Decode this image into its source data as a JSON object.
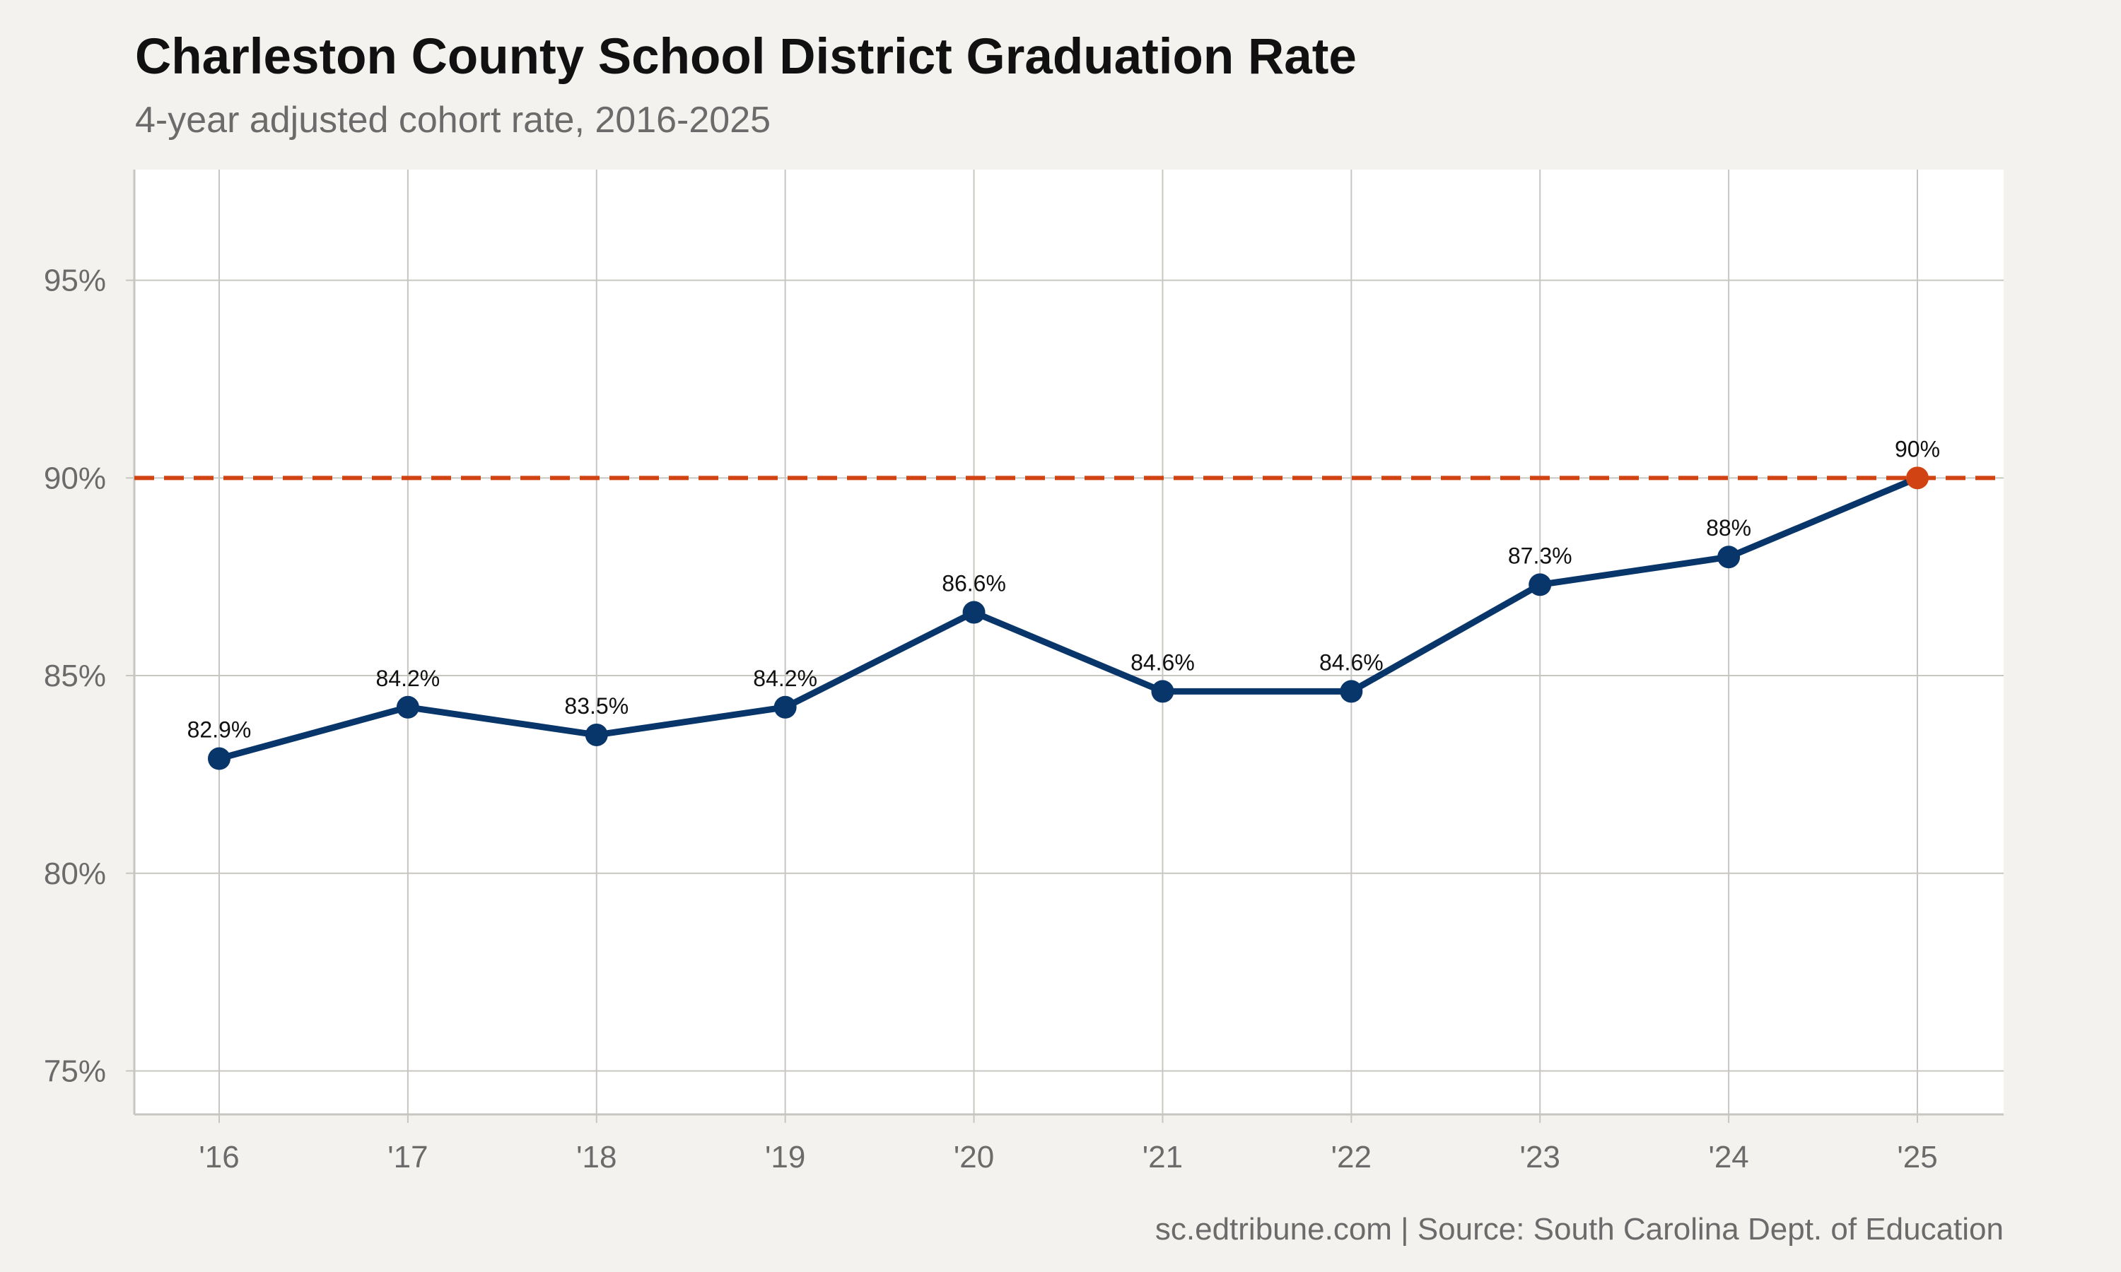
{
  "title": "Charleston County School District Graduation Rate",
  "subtitle": "4-year adjusted cohort rate, 2016-2025",
  "caption": "sc.edtribune.com | Source: South Carolina Dept. of Education",
  "colors": {
    "background": "#f4f2ee",
    "panel": "#ffffff",
    "grid": "#c8c6c0",
    "line": "#08356a",
    "highlight": "#d24314",
    "reference": "#d24314"
  },
  "chart_data": {
    "type": "line",
    "title": "Charleston County School District Graduation Rate",
    "subtitle": "4-year adjusted cohort rate, 2016-2025",
    "xlabel": "",
    "ylabel": "",
    "categories": [
      "'16",
      "'17",
      "'18",
      "'19",
      "'20",
      "'21",
      "'22",
      "'23",
      "'24",
      "'25"
    ],
    "series": [
      {
        "values": [
          82.9,
          84.2,
          83.5,
          84.2,
          86.6,
          84.6,
          84.6,
          87.3,
          88,
          90
        ],
        "labels": [
          "82.9%",
          "84.2%",
          "83.5%",
          "84.2%",
          "86.6%",
          "84.6%",
          "84.6%",
          "87.3%",
          "88%",
          "90%"
        ]
      }
    ],
    "highlight_index": 9,
    "reference_line": {
      "y": 90,
      "style": "dashed"
    },
    "ylim": [
      73.9,
      97.8
    ],
    "yticks": [
      75,
      80,
      85,
      90,
      95
    ],
    "ytick_labels": [
      "75%",
      "80%",
      "85%",
      "90%",
      "95%"
    ],
    "grid": true,
    "legend": "none"
  }
}
